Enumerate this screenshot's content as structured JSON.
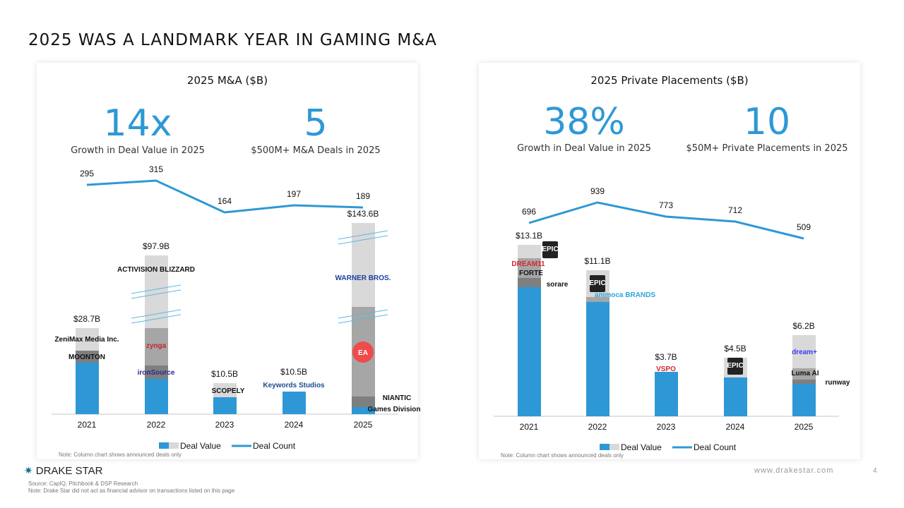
{
  "page_title": "2025 WAS A LANDMARK YEAR IN GAMING M&A",
  "footer": {
    "brand": "DRAKE STAR",
    "source": "Source: CapIQ, Pitchbook & DSP Research",
    "note": "Note: Drake Star did not act as financial advisor on transactions listed on this page",
    "url": "www.drakestar.com",
    "page_number": "4"
  },
  "colors": {
    "blue": "#2e98d6",
    "light": "#d9d9d9",
    "mid": "#a6a6a6",
    "dark": "#7f7f7f"
  },
  "chart_data": [
    {
      "type": "bar",
      "title": "2025 M&A ($B)",
      "kpis": [
        {
          "value": "14x",
          "label": "Growth in Deal Value in 2025"
        },
        {
          "value": "5",
          "label": "$500M+ M&A Deals in 2025"
        }
      ],
      "categories": [
        "2021",
        "2022",
        "2023",
        "2024",
        "2025"
      ],
      "series": [
        {
          "name": "Deal Value",
          "values": [
            28.7,
            97.9,
            10.5,
            10.5,
            143.6
          ],
          "labels": [
            "$28.7B",
            "$97.9B",
            "$10.5B",
            "$10.5B",
            "$143.6B"
          ]
        },
        {
          "name": "Deal Count",
          "type": "line",
          "values": [
            295,
            315,
            164,
            197,
            189
          ]
        }
      ],
      "legend": [
        "Deal Value",
        "Deal Count"
      ],
      "legend_position": "bottom",
      "note": "Note: Column chart shows announced deals only",
      "logos": [
        "ZeniMax Media Inc.",
        "MOONTON",
        "ACTIVISION BLIZZARD",
        "zynga",
        "ironSource",
        "SCOPELY",
        "Keywords Studios",
        "WARNER BROS.",
        "EA",
        "NIANTIC",
        "Games Division"
      ]
    },
    {
      "type": "bar",
      "title": "2025 Private Placements ($B)",
      "kpis": [
        {
          "value": "38%",
          "label": "Growth in Deal Value in 2025"
        },
        {
          "value": "10",
          "label": "$50M+ Private Placements in 2025"
        }
      ],
      "categories": [
        "2021",
        "2022",
        "2023",
        "2024",
        "2025"
      ],
      "series": [
        {
          "name": "Deal Value",
          "values": [
            13.1,
            11.1,
            3.7,
            4.5,
            6.2
          ],
          "labels": [
            "$13.1B",
            "$11.1B",
            "$3.7B",
            "$4.5B",
            "$6.2B"
          ]
        },
        {
          "name": "Deal Count",
          "type": "line",
          "values": [
            696,
            939,
            773,
            712,
            509
          ]
        }
      ],
      "legend": [
        "Deal Value",
        "Deal Count"
      ],
      "legend_position": "bottom",
      "note": "Note: Column chart shows announced deals only",
      "logos": [
        "EPIC GAMES",
        "DREAM11",
        "FORTE",
        "sorare",
        "EPIC GAMES",
        "animoca BRANDS",
        "VSPO",
        "EPIC GAMES",
        "dream+",
        "Luma AI",
        "runway"
      ]
    }
  ]
}
